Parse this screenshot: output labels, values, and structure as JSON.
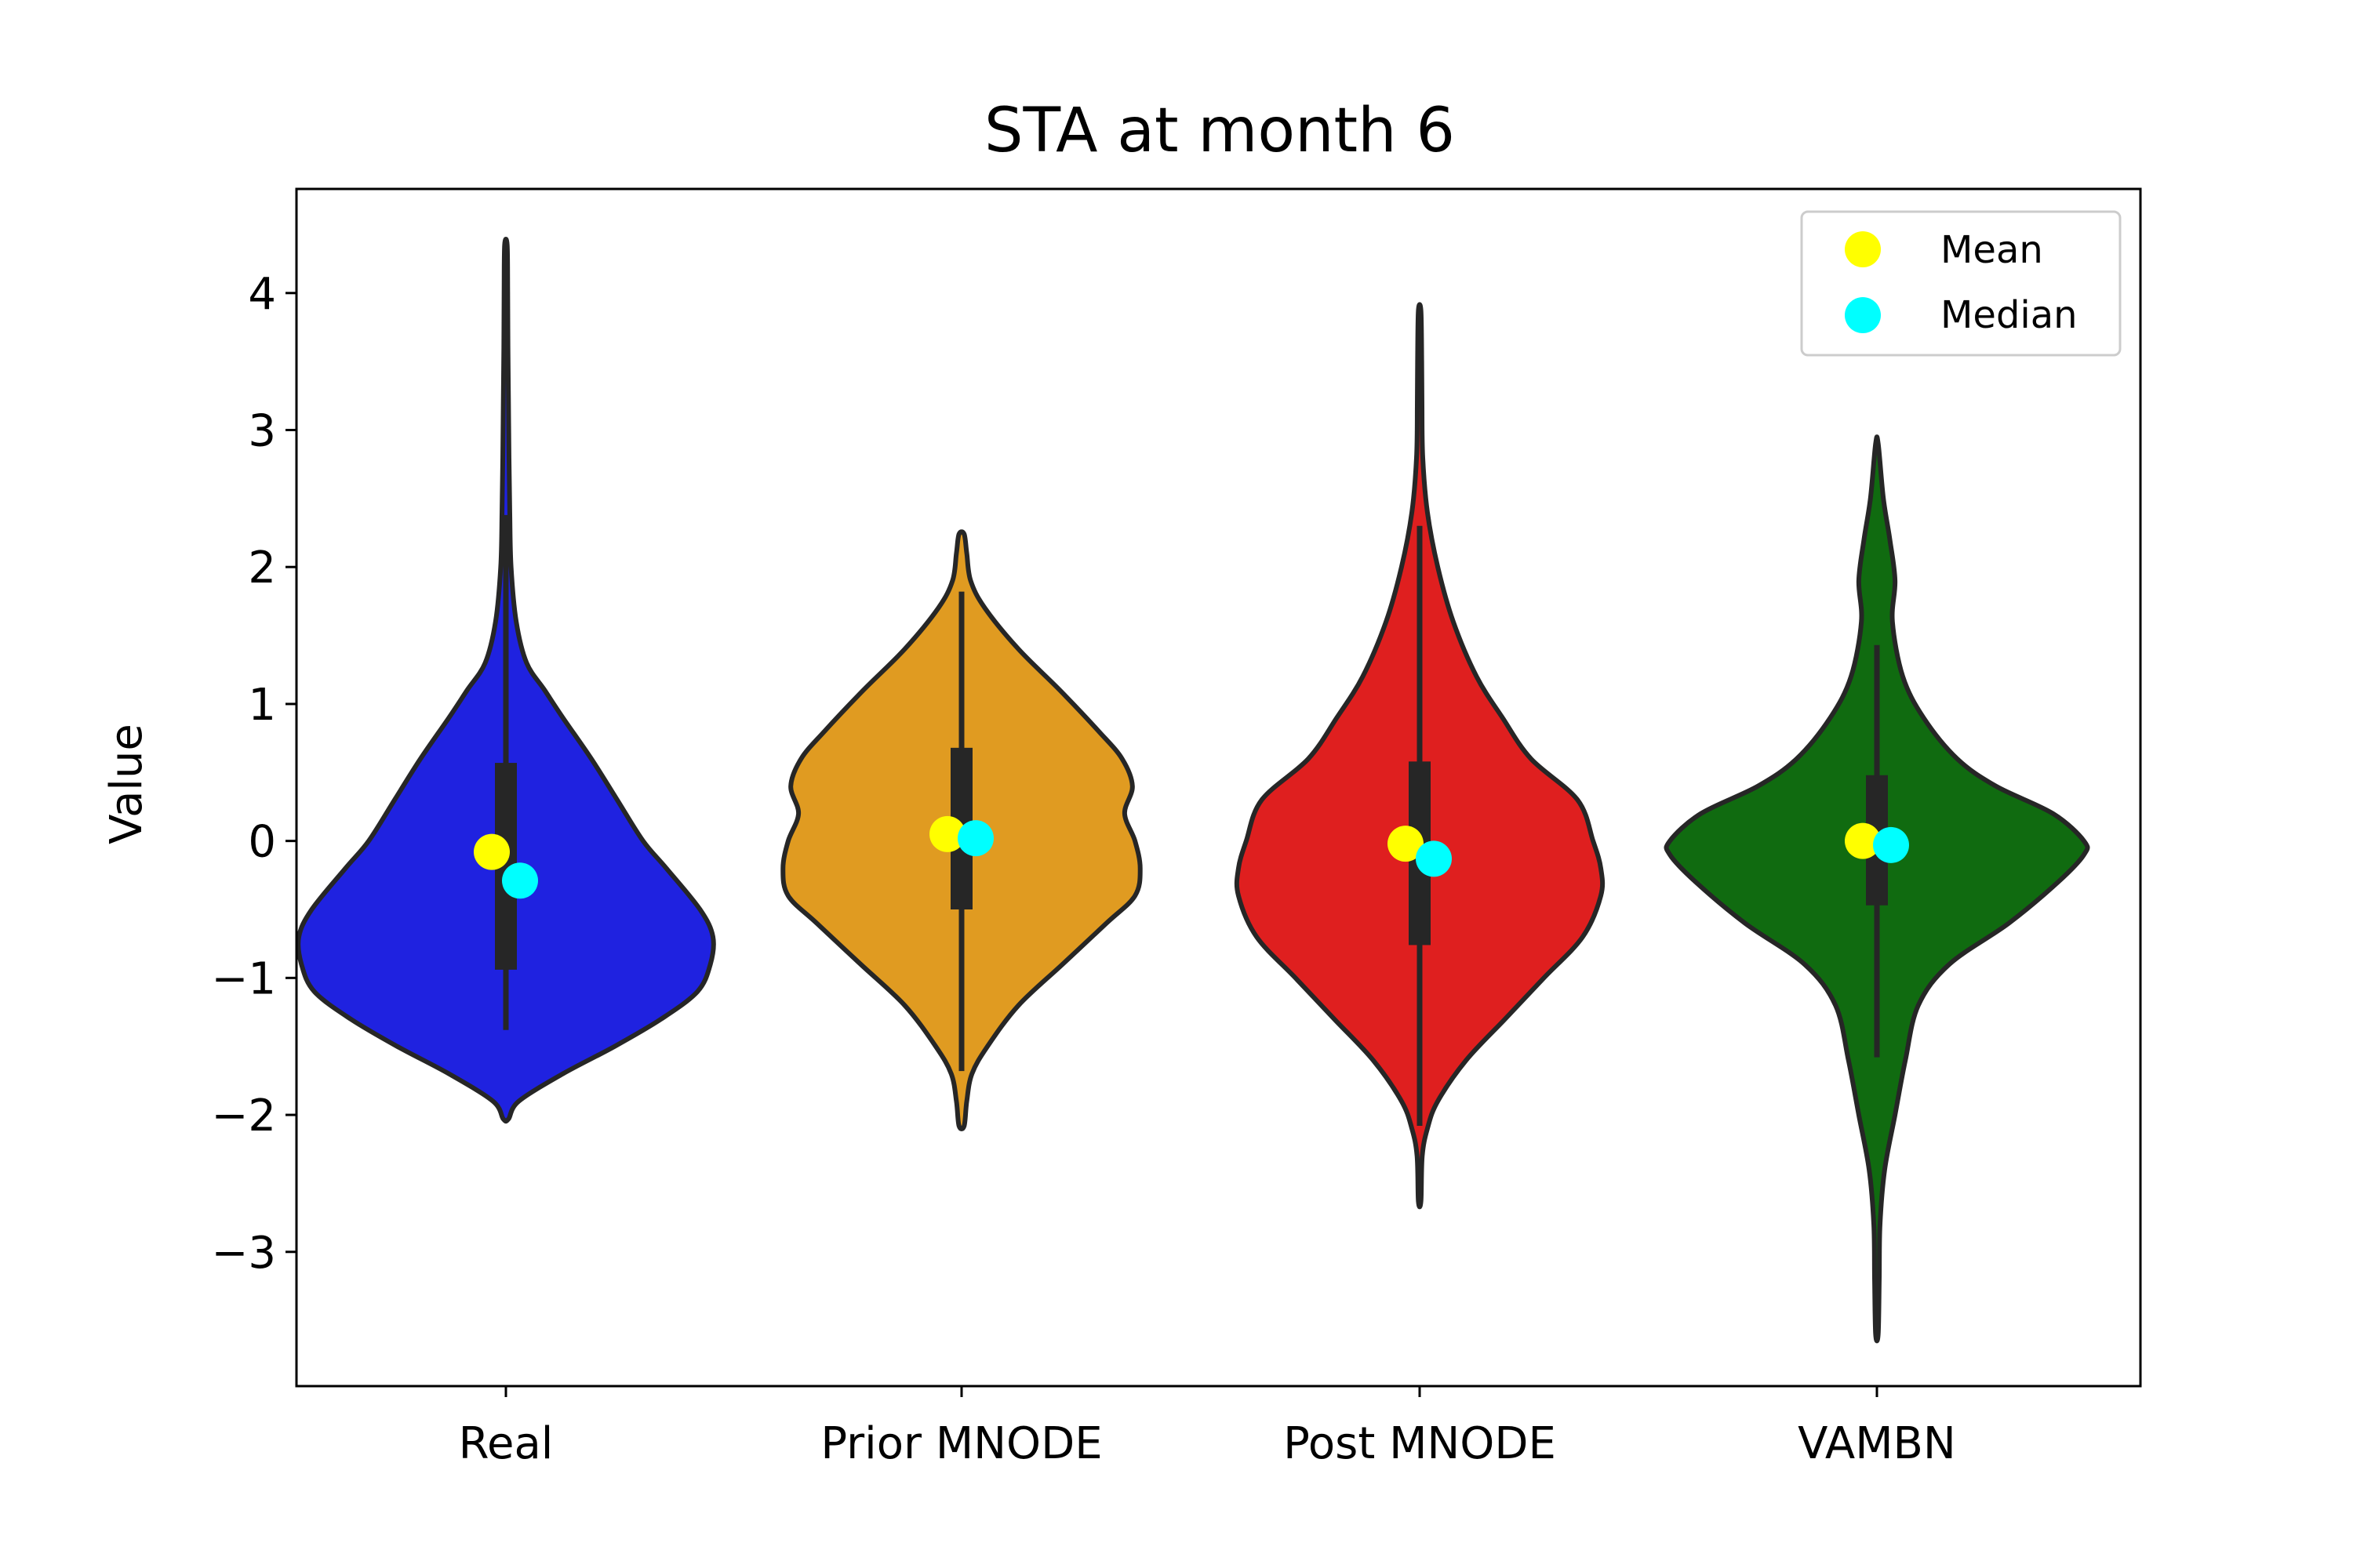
{
  "chart_data": {
    "type": "violin",
    "title": "STA at month 6",
    "xlabel": "",
    "ylabel": "Value",
    "ylim": [
      -3.98,
      4.76
    ],
    "yticks": [
      4,
      3,
      2,
      1,
      0,
      -1,
      -2,
      -3
    ],
    "ytick_labels": [
      "4",
      "3",
      "2",
      "1",
      "0",
      "−1",
      "−2",
      "−3"
    ],
    "grid": false,
    "legend_position": "top-right",
    "legend": [
      {
        "label": "Mean",
        "color": "#ffff00"
      },
      {
        "label": "Median",
        "color": "#00ffff"
      }
    ],
    "categories": [
      "Real",
      "Prior MNODE",
      "Post MNODE",
      "VAMBN"
    ],
    "series": [
      {
        "category": "Real",
        "color": "#1f22e0",
        "mean": -0.08,
        "median": -0.29,
        "q1": -0.94,
        "q3": 0.57,
        "whisker_low": -1.38,
        "whisker_high": 2.38,
        "density": [
          [
            -2.03,
            0.01
          ],
          [
            -1.9,
            0.05
          ],
          [
            -1.7,
            0.22
          ],
          [
            -1.5,
            0.42
          ],
          [
            -1.3,
            0.6
          ],
          [
            -1.1,
            0.74
          ],
          [
            -0.9,
            0.79
          ],
          [
            -0.7,
            0.8
          ],
          [
            -0.5,
            0.75
          ],
          [
            -0.2,
            0.62
          ],
          [
            0.0,
            0.53
          ],
          [
            0.3,
            0.43
          ],
          [
            0.6,
            0.33
          ],
          [
            0.9,
            0.22
          ],
          [
            1.1,
            0.15
          ],
          [
            1.3,
            0.08
          ],
          [
            1.6,
            0.04
          ],
          [
            2.0,
            0.02
          ],
          [
            2.4,
            0.015
          ],
          [
            2.8,
            0.012
          ],
          [
            3.2,
            0.01
          ],
          [
            3.6,
            0.008
          ],
          [
            4.0,
            0.007
          ],
          [
            4.35,
            0.005
          ]
        ]
      },
      {
        "category": "Prior MNODE",
        "color": "#e09b21",
        "mean": 0.05,
        "median": 0.02,
        "q1": -0.5,
        "q3": 0.68,
        "whisker_low": -1.68,
        "whisker_high": 1.82,
        "density": [
          [
            -2.08,
            0.01
          ],
          [
            -1.9,
            0.02
          ],
          [
            -1.7,
            0.04
          ],
          [
            -1.5,
            0.1
          ],
          [
            -1.2,
            0.22
          ],
          [
            -0.9,
            0.39
          ],
          [
            -0.6,
            0.56
          ],
          [
            -0.4,
            0.67
          ],
          [
            -0.2,
            0.69
          ],
          [
            0.0,
            0.67
          ],
          [
            0.2,
            0.63
          ],
          [
            0.4,
            0.66
          ],
          [
            0.6,
            0.62
          ],
          [
            0.8,
            0.53
          ],
          [
            1.1,
            0.38
          ],
          [
            1.4,
            0.22
          ],
          [
            1.7,
            0.09
          ],
          [
            1.9,
            0.035
          ],
          [
            2.1,
            0.02
          ],
          [
            2.24,
            0.01
          ]
        ]
      },
      {
        "category": "Post MNODE",
        "color": "#df1f1f",
        "mean": -0.02,
        "median": -0.13,
        "q1": -0.76,
        "q3": 0.58,
        "whisker_low": -2.08,
        "whisker_high": 2.3,
        "density": [
          [
            -2.63,
            0.005
          ],
          [
            -2.3,
            0.01
          ],
          [
            -2.1,
            0.03
          ],
          [
            -1.9,
            0.07
          ],
          [
            -1.6,
            0.18
          ],
          [
            -1.3,
            0.33
          ],
          [
            -1.0,
            0.48
          ],
          [
            -0.7,
            0.63
          ],
          [
            -0.4,
            0.7
          ],
          [
            -0.2,
            0.7
          ],
          [
            0.0,
            0.67
          ],
          [
            0.3,
            0.61
          ],
          [
            0.6,
            0.43
          ],
          [
            0.9,
            0.32
          ],
          [
            1.2,
            0.22
          ],
          [
            1.6,
            0.13
          ],
          [
            2.0,
            0.07
          ],
          [
            2.4,
            0.03
          ],
          [
            2.8,
            0.012
          ],
          [
            3.2,
            0.009
          ],
          [
            3.5,
            0.008
          ],
          [
            3.87,
            0.005
          ]
        ]
      },
      {
        "category": "VAMBN",
        "color": "#106b10",
        "mean": 0.0,
        "median": -0.03,
        "q1": -0.47,
        "q3": 0.48,
        "whisker_low": -1.58,
        "whisker_high": 1.43,
        "density": [
          [
            -3.6,
            0.005
          ],
          [
            -3.2,
            0.009
          ],
          [
            -2.8,
            0.012
          ],
          [
            -2.4,
            0.03
          ],
          [
            -2.0,
            0.07
          ],
          [
            -1.6,
            0.11
          ],
          [
            -1.2,
            0.16
          ],
          [
            -0.9,
            0.28
          ],
          [
            -0.6,
            0.51
          ],
          [
            -0.3,
            0.7
          ],
          [
            -0.1,
            0.8
          ],
          [
            0.0,
            0.8
          ],
          [
            0.2,
            0.68
          ],
          [
            0.4,
            0.46
          ],
          [
            0.6,
            0.31
          ],
          [
            0.9,
            0.18
          ],
          [
            1.2,
            0.1
          ],
          [
            1.6,
            0.06
          ],
          [
            1.9,
            0.07
          ],
          [
            2.2,
            0.05
          ],
          [
            2.5,
            0.025
          ],
          [
            2.9,
            0.005
          ]
        ]
      }
    ]
  }
}
